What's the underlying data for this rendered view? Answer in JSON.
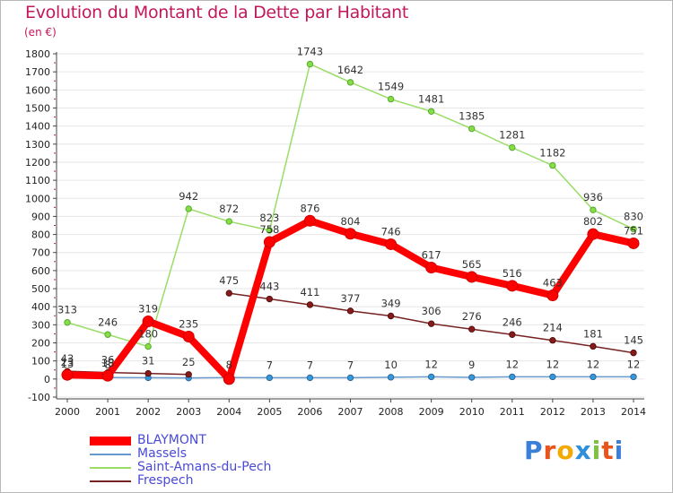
{
  "title": "Evolution du Montant de la Dette par Habitant",
  "unit": "(en €)",
  "logo": {
    "text": "Proxiti"
  },
  "chart_data": {
    "type": "line",
    "title": "Evolution du Montant de la Dette par Habitant",
    "ylabel": "(en €)",
    "x": [
      2000,
      2001,
      2002,
      2003,
      2004,
      2005,
      2006,
      2007,
      2008,
      2009,
      2010,
      2011,
      2012,
      2013,
      2014
    ],
    "ylim": [
      -100,
      1800
    ],
    "yticks": [
      -100,
      0,
      100,
      200,
      300,
      400,
      500,
      600,
      700,
      800,
      900,
      1000,
      1100,
      1200,
      1300,
      1400,
      1500,
      1600,
      1700,
      1800
    ],
    "series": [
      {
        "name": "BLAYMONT",
        "color": "#ff0000",
        "values": [
          23,
          18,
          319,
          235,
          0,
          758,
          876,
          804,
          746,
          617,
          565,
          516,
          463,
          802,
          751
        ],
        "labels": [
          "23",
          "18",
          "319",
          "235",
          "",
          "758",
          "876",
          "804",
          "746",
          "617",
          "565",
          "516",
          "463",
          "802",
          "751"
        ]
      },
      {
        "name": "Massels",
        "color": "#6699cc",
        "values": [
          13,
          8,
          7,
          6,
          8,
          7,
          7,
          7,
          10,
          12,
          9,
          12,
          12,
          12,
          12
        ],
        "labels": [
          "13",
          "8",
          "",
          "",
          "8",
          "7",
          "7",
          "7",
          "10",
          "12",
          "9",
          "12",
          "12",
          "12",
          "12"
        ]
      },
      {
        "name": "Saint-Amans-du-Pech",
        "color": "#99dd66",
        "values": [
          313,
          246,
          180,
          942,
          872,
          823,
          1743,
          1642,
          1549,
          1481,
          1385,
          1281,
          1182,
          936,
          830
        ],
        "labels": [
          "313",
          "246",
          "180",
          "942",
          "872",
          "823",
          "1743",
          "1642",
          "1549",
          "1481",
          "1385",
          "1281",
          "1182",
          "936",
          "830"
        ]
      },
      {
        "name": "Frespech",
        "color": "#772222",
        "values": [
          43,
          36,
          31,
          25,
          null,
          475,
          443,
          411,
          377,
          349,
          306,
          276,
          246,
          214,
          181,
          145
        ],
        "x": [
          2000,
          2001,
          2002,
          2003,
          2004,
          2004,
          2005,
          2006,
          2007,
          2008,
          2009,
          2010,
          2011,
          2012,
          2013,
          2014
        ],
        "labels": [
          "43",
          "36",
          "31",
          "25",
          "",
          "475",
          "443",
          "411",
          "377",
          "349",
          "306",
          "276",
          "246",
          "214",
          "181",
          "145"
        ]
      }
    ]
  }
}
